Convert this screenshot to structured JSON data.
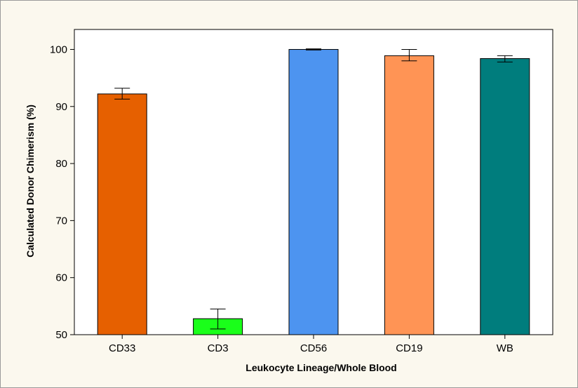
{
  "chart_data": {
    "type": "bar",
    "title": "",
    "xlabel": "Leukocyte Lineage/Whole Blood",
    "ylabel": "Calculated Donor Chimerism (%)",
    "ylim": [
      50,
      103.5
    ],
    "yticks": [
      50,
      60,
      70,
      80,
      90,
      100
    ],
    "categories": [
      "CD33",
      "CD3",
      "CD56",
      "CD19",
      "WB"
    ],
    "values": [
      92.2,
      52.8,
      100.0,
      98.9,
      98.4
    ],
    "error_low": [
      91.3,
      51.0,
      99.9,
      98.0,
      97.8
    ],
    "error_high": [
      93.2,
      54.5,
      100.1,
      100.0,
      98.9
    ],
    "colors": [
      "#e66000",
      "#1aff1a",
      "#4d94f0",
      "#ff9455",
      "#007d7d"
    ],
    "grid": false,
    "legend": "none"
  }
}
